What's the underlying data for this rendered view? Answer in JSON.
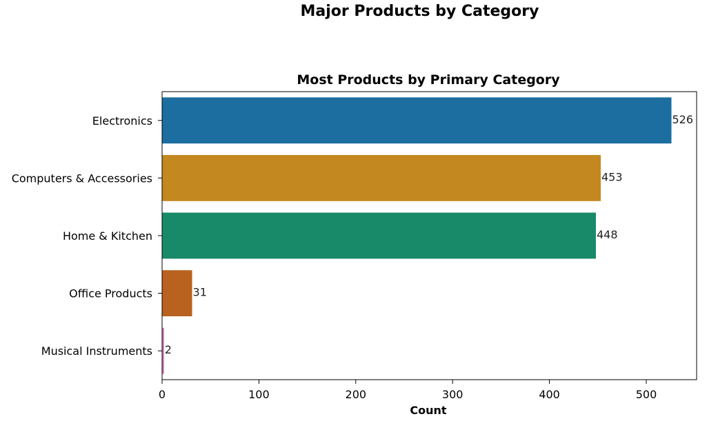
{
  "figure": {
    "suptitle": "Major Products by Category"
  },
  "chart_data": {
    "type": "bar",
    "orientation": "horizontal",
    "title": "Most Products by Primary Category",
    "xlabel": "Count",
    "ylabel": "",
    "categories": [
      "Electronics",
      "Computers & Accessories",
      "Home & Kitchen",
      "Office Products",
      "Musical Instruments"
    ],
    "values": [
      526,
      453,
      448,
      31,
      2
    ],
    "colors": [
      "#1b6e9f",
      "#c38820",
      "#188a6a",
      "#b9621f",
      "#cb78bc"
    ],
    "xlim": [
      0,
      552
    ],
    "xticks": [
      0,
      100,
      200,
      300,
      400,
      500
    ],
    "grid": false,
    "data_labels": true
  }
}
